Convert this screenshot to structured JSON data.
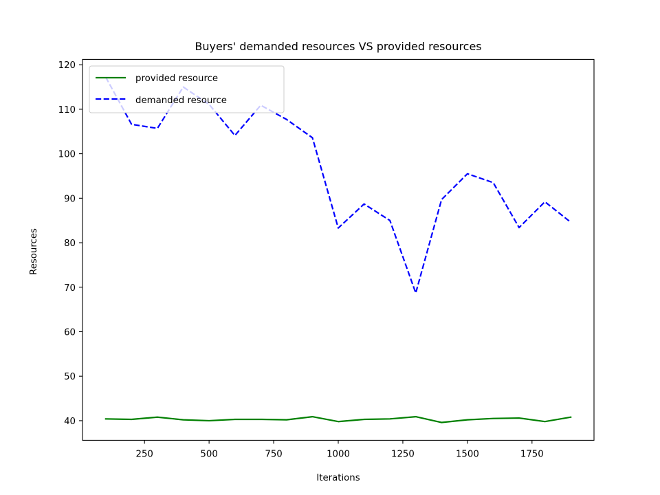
{
  "chart_data": {
    "type": "line",
    "title": "Buyers' demanded resources VS provided resources",
    "xlabel": "Iterations",
    "ylabel": "Resources",
    "xlim": [
      10,
      1990
    ],
    "ylim": [
      35.6,
      121.2
    ],
    "xticks": [
      250,
      500,
      750,
      1000,
      1250,
      1500,
      1750
    ],
    "yticks": [
      40,
      50,
      60,
      70,
      80,
      90,
      100,
      110,
      120
    ],
    "grid": false,
    "legend_position": "top-left",
    "x": [
      100,
      200,
      300,
      400,
      500,
      600,
      700,
      800,
      900,
      1000,
      1100,
      1200,
      1300,
      1400,
      1500,
      1600,
      1700,
      1800,
      1900
    ],
    "series": [
      {
        "name": "provided resource",
        "color": "#008000",
        "style": "solid",
        "values": [
          40.4,
          40.3,
          40.8,
          40.2,
          40.0,
          40.3,
          40.3,
          40.2,
          40.9,
          39.8,
          40.3,
          40.4,
          40.9,
          39.6,
          40.2,
          40.5,
          40.6,
          39.8,
          40.8
        ]
      },
      {
        "name": "demanded resource",
        "color": "#0000ff",
        "style": "dashed",
        "values": [
          117.2,
          106.6,
          105.7,
          115.0,
          111.1,
          104.1,
          110.9,
          107.7,
          103.6,
          83.3,
          88.7,
          85.0,
          68.7,
          89.7,
          95.5,
          93.5,
          83.4,
          89.2,
          84.6
        ]
      }
    ]
  }
}
